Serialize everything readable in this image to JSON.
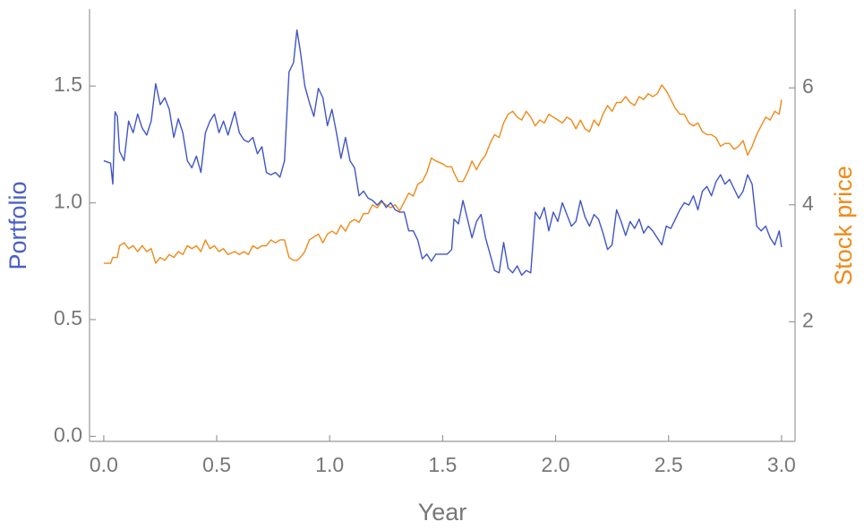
{
  "chart_data": {
    "type": "line",
    "xlabel": "Year",
    "ylabel": "Portfolio",
    "y2label": "Stock price",
    "x": [
      0,
      0.03,
      0.04,
      0.05,
      0.06,
      0.07,
      0.09,
      0.11,
      0.13,
      0.15,
      0.17,
      0.19,
      0.21,
      0.23,
      0.25,
      0.27,
      0.29,
      0.31,
      0.33,
      0.35,
      0.37,
      0.39,
      0.41,
      0.43,
      0.45,
      0.47,
      0.49,
      0.51,
      0.53,
      0.55,
      0.58,
      0.6,
      0.62,
      0.64,
      0.66,
      0.68,
      0.7,
      0.72,
      0.74,
      0.76,
      0.78,
      0.8,
      0.82,
      0.84,
      0.855,
      0.87,
      0.89,
      0.91,
      0.93,
      0.95,
      0.97,
      0.99,
      1.01,
      1.03,
      1.05,
      1.07,
      1.09,
      1.11,
      1.13,
      1.15,
      1.17,
      1.19,
      1.21,
      1.23,
      1.25,
      1.27,
      1.29,
      1.31,
      1.33,
      1.35,
      1.37,
      1.39,
      1.41,
      1.43,
      1.45,
      1.47,
      1.5,
      1.52,
      1.54,
      1.55,
      1.57,
      1.59,
      1.61,
      1.63,
      1.65,
      1.67,
      1.69,
      1.71,
      1.73,
      1.75,
      1.77,
      1.79,
      1.81,
      1.83,
      1.85,
      1.87,
      1.89,
      1.91,
      1.93,
      1.95,
      1.97,
      1.99,
      2.01,
      2.03,
      2.05,
      2.07,
      2.09,
      2.11,
      2.13,
      2.15,
      2.17,
      2.19,
      2.21,
      2.23,
      2.25,
      2.27,
      2.29,
      2.31,
      2.33,
      2.35,
      2.37,
      2.39,
      2.41,
      2.43,
      2.45,
      2.47,
      2.49,
      2.51,
      2.53,
      2.55,
      2.57,
      2.59,
      2.61,
      2.63,
      2.65,
      2.67,
      2.69,
      2.71,
      2.73,
      2.75,
      2.77,
      2.79,
      2.81,
      2.83,
      2.85,
      2.87,
      2.89,
      2.91,
      2.93,
      2.95,
      2.97,
      2.99,
      3
    ],
    "series": [
      {
        "color": "#3f55c8",
        "axis": "y",
        "values": [
          1.18,
          1.17,
          1.08,
          1.39,
          1.37,
          1.22,
          1.18,
          1.35,
          1.3,
          1.38,
          1.32,
          1.29,
          1.35,
          1.51,
          1.42,
          1.45,
          1.4,
          1.28,
          1.36,
          1.3,
          1.18,
          1.15,
          1.2,
          1.13,
          1.3,
          1.35,
          1.38,
          1.3,
          1.35,
          1.29,
          1.39,
          1.3,
          1.27,
          1.26,
          1.28,
          1.21,
          1.24,
          1.13,
          1.12,
          1.13,
          1.11,
          1.18,
          1.56,
          1.6,
          1.74,
          1.65,
          1.5,
          1.43,
          1.37,
          1.49,
          1.45,
          1.33,
          1.4,
          1.3,
          1.19,
          1.28,
          1.18,
          1.15,
          1.03,
          1.05,
          1.02,
          1.01,
          0.99,
          1.01,
          0.98,
          1.0,
          0.97,
          0.96,
          0.96,
          0.88,
          0.88,
          0.84,
          0.76,
          0.78,
          0.75,
          0.78,
          0.78,
          0.78,
          0.8,
          0.93,
          0.91,
          1.01,
          0.93,
          0.85,
          0.92,
          0.95,
          0.85,
          0.78,
          0.71,
          0.7,
          0.83,
          0.72,
          0.7,
          0.73,
          0.69,
          0.71,
          0.7,
          0.96,
          0.93,
          0.98,
          0.88,
          0.96,
          0.92,
          1.0,
          0.95,
          0.9,
          0.92,
          1.01,
          0.94,
          0.9,
          0.95,
          0.93,
          0.87,
          0.8,
          0.82,
          0.97,
          0.92,
          0.86,
          0.92,
          0.89,
          0.93,
          0.87,
          0.9,
          0.88,
          0.85,
          0.82,
          0.9,
          0.89,
          0.93,
          0.97,
          1.0,
          0.99,
          1.03,
          0.97,
          1.05,
          1.07,
          1.03,
          1.09,
          1.12,
          1.08,
          1.1,
          1.06,
          1.02,
          1.05,
          1.12,
          1.08,
          0.9,
          0.88,
          0.9,
          0.85,
          0.82,
          0.88,
          0.81
        ]
      },
      {
        "color": "#ef8a17",
        "axis": "y2",
        "values": [
          3.0,
          3.0,
          3.1,
          3.1,
          3.1,
          3.3,
          3.35,
          3.25,
          3.3,
          3.2,
          3.3,
          3.2,
          3.25,
          3.0,
          3.1,
          3.05,
          3.15,
          3.1,
          3.2,
          3.15,
          3.3,
          3.25,
          3.3,
          3.2,
          3.4,
          3.25,
          3.3,
          3.2,
          3.25,
          3.15,
          3.2,
          3.15,
          3.2,
          3.15,
          3.3,
          3.25,
          3.3,
          3.3,
          3.4,
          3.35,
          3.4,
          3.4,
          3.1,
          3.05,
          3.05,
          3.1,
          3.2,
          3.4,
          3.45,
          3.5,
          3.35,
          3.5,
          3.55,
          3.5,
          3.65,
          3.55,
          3.7,
          3.75,
          3.7,
          3.85,
          3.85,
          4.0,
          3.95,
          4.05,
          4.0,
          3.95,
          4.0,
          3.9,
          4.05,
          4.2,
          4.15,
          4.35,
          4.4,
          4.55,
          4.8,
          4.75,
          4.7,
          4.65,
          4.65,
          4.55,
          4.4,
          4.4,
          4.55,
          4.75,
          4.6,
          4.75,
          4.85,
          5.05,
          5.2,
          5.15,
          5.4,
          5.55,
          5.6,
          5.5,
          5.45,
          5.6,
          5.5,
          5.35,
          5.45,
          5.4,
          5.55,
          5.5,
          5.45,
          5.4,
          5.5,
          5.45,
          5.3,
          5.45,
          5.3,
          5.25,
          5.45,
          5.35,
          5.55,
          5.7,
          5.6,
          5.75,
          5.75,
          5.85,
          5.75,
          5.7,
          5.85,
          5.8,
          5.9,
          5.85,
          5.9,
          6.05,
          5.95,
          5.8,
          5.65,
          5.55,
          5.55,
          5.4,
          5.35,
          5.4,
          5.25,
          5.2,
          5.2,
          5.15,
          5.0,
          5.05,
          5.05,
          4.95,
          5.0,
          5.1,
          4.85,
          5.0,
          5.2,
          5.35,
          5.5,
          5.45,
          5.6,
          5.55,
          5.8
        ]
      }
    ],
    "xlim": [
      -0.063,
      3.06
    ],
    "xticks": [
      {
        "value": 0,
        "label": "0.0"
      },
      0.5,
      {
        "value": 1,
        "label": "1.0"
      },
      1.5,
      {
        "value": 2,
        "label": "2.0"
      },
      2.5,
      {
        "value": 3,
        "label": "3.0"
      }
    ],
    "ylim": [
      -0.01,
      1.83
    ],
    "yticks": [
      {
        "value": 0,
        "label": "0.0"
      },
      0.5,
      {
        "value": 1,
        "label": "1.0"
      },
      1.5
    ],
    "y2lim": [
      0,
      7.35
    ],
    "y2ticks": [
      2,
      4,
      6
    ],
    "grid": false
  }
}
